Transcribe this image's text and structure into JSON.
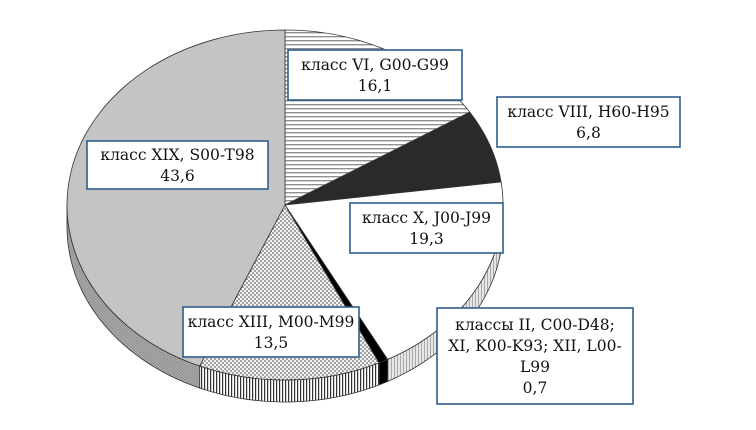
{
  "chart_data": {
    "type": "pie",
    "title": "",
    "slices": [
      {
        "label_lines": [
          "класс VI, G00-G99"
        ],
        "value": 16.1,
        "value_text": "16,1",
        "pattern": "hlines"
      },
      {
        "label_lines": [
          "класс VIII, H60-H95"
        ],
        "value": 6.8,
        "value_text": "6,8",
        "pattern": "dark"
      },
      {
        "label_lines": [
          "класс X, J00-J99"
        ],
        "value": 19.3,
        "value_text": "19,3",
        "pattern": "white"
      },
      {
        "label_lines": [
          "классы II, C00-D48;",
          "XI, K00-K93; XII, L00-",
          "L99"
        ],
        "value": 0.7,
        "value_text": "0,7",
        "pattern": "black"
      },
      {
        "label_lines": [
          "класс XIII, M00-M99"
        ],
        "value": 13.5,
        "value_text": "13,5",
        "pattern": "dots"
      },
      {
        "label_lines": [
          "класс XIX, S00-T98"
        ],
        "value": 43.6,
        "value_text": "43,6",
        "pattern": "gray"
      }
    ],
    "style": "3d-pie",
    "legend": "none"
  }
}
